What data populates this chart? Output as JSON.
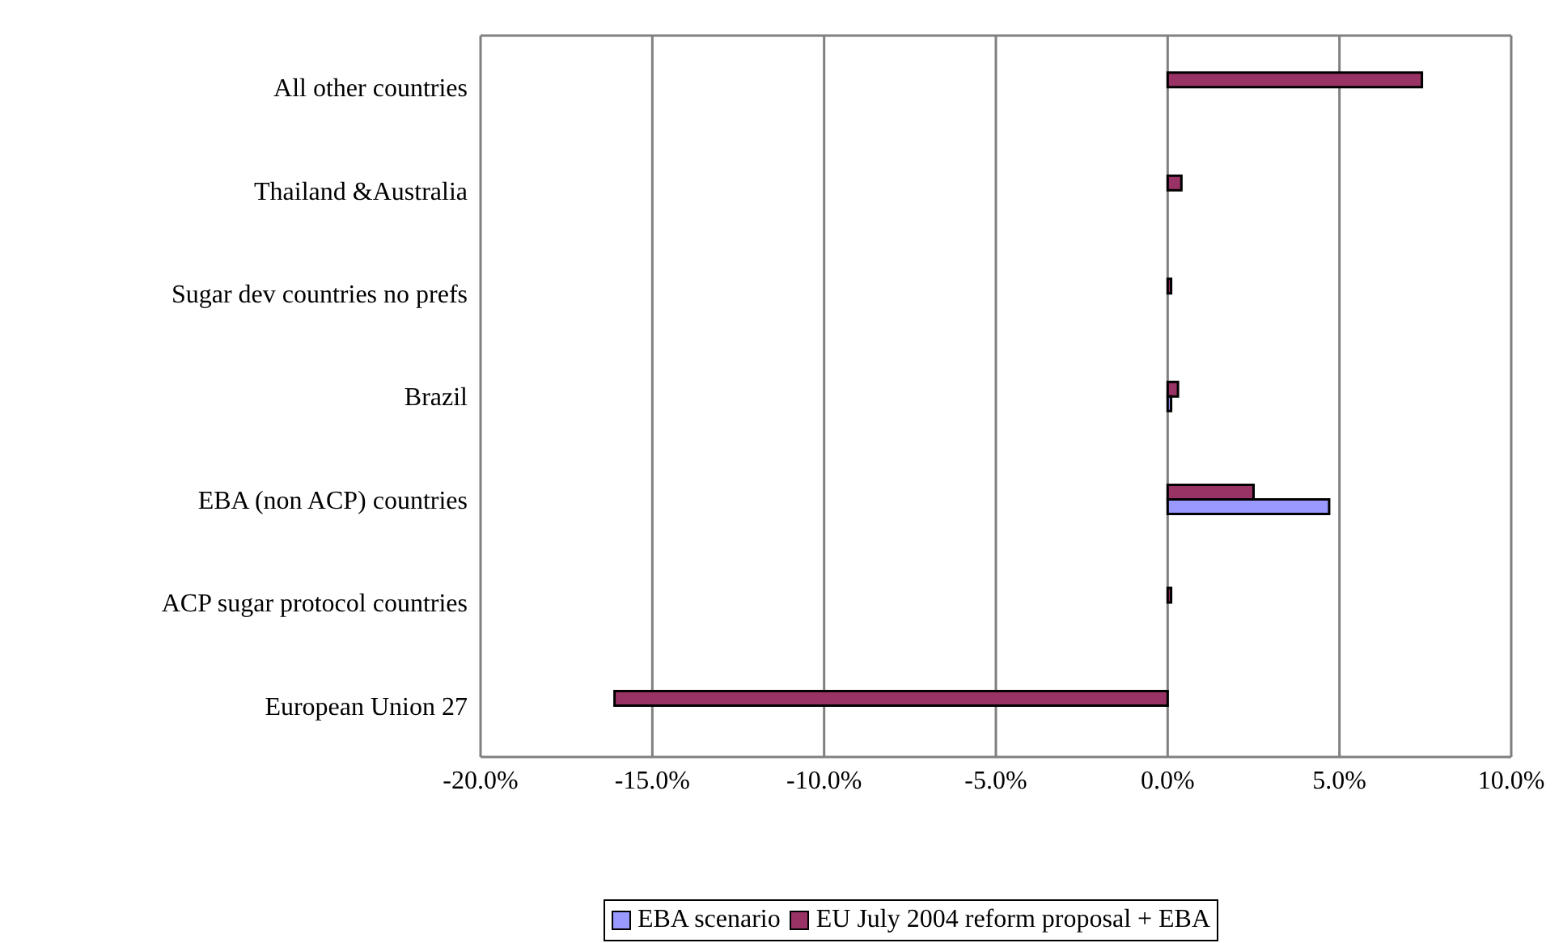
{
  "chart_data": {
    "type": "bar",
    "orientation": "horizontal",
    "categories": [
      "All other countries",
      "Thailand &Australia",
      "Sugar dev countries no prefs",
      "Brazil",
      "EBA (non ACP) countries",
      "ACP sugar protocol countries",
      "European Union 27"
    ],
    "series": [
      {
        "name": "EBA scenario",
        "color": "#9999ff",
        "values": [
          0,
          0,
          0,
          0.1,
          4.7,
          0,
          0
        ]
      },
      {
        "name": "EU July 2004 reform proposal + EBA",
        "color": "#993366",
        "values": [
          7.4,
          0.4,
          0.1,
          0.3,
          2.5,
          0.1,
          -16.1
        ]
      }
    ],
    "xlim": [
      -20,
      10
    ],
    "xticks": [
      {
        "value": -20,
        "label": "-20.0%"
      },
      {
        "value": -15,
        "label": "-15.0%"
      },
      {
        "value": -10,
        "label": "-10.0%"
      },
      {
        "value": -5,
        "label": "-5.0%"
      },
      {
        "value": 0,
        "label": "0.0%"
      },
      {
        "value": 5,
        "label": "5.0%"
      },
      {
        "value": 10,
        "label": "10.0%"
      }
    ],
    "grid": "x",
    "legend": "bottom"
  }
}
